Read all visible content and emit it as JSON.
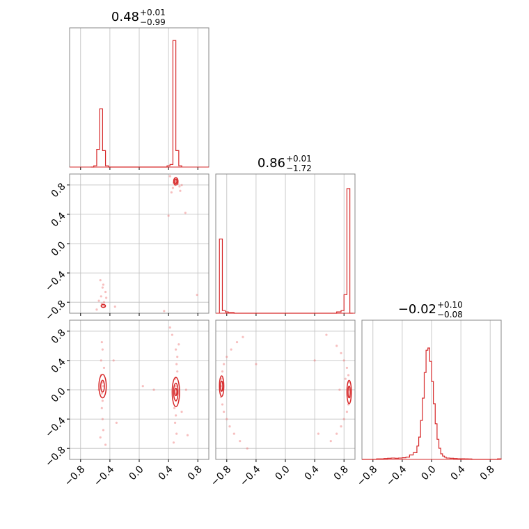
{
  "chart_data": {
    "type": "corner",
    "colors": {
      "accent": "#d62728",
      "points": "#f08080",
      "frame": "#888888",
      "grid": "#bdbdbd"
    },
    "parameter_titles": [
      {
        "value": "0.48",
        "plus": "+0.01",
        "minus": "−0.99"
      },
      {
        "value": "0.86",
        "plus": "+0.01",
        "minus": "−1.72"
      },
      {
        "value": "−0.02",
        "plus": "+0.10",
        "minus": "−0.08"
      }
    ],
    "x_tick_labels": [
      "−0.8",
      "−0.4",
      "0.0",
      "0.4",
      "0.8"
    ],
    "y_tick_labels": [
      "0.8",
      "0.4",
      "0.0",
      "−0.4",
      "−0.8"
    ],
    "tick_values": [
      -0.8,
      -0.4,
      0.0,
      0.4,
      0.8
    ],
    "axis_range": [
      -0.95,
      0.95
    ],
    "grid": true,
    "histograms": [
      {
        "param": 0,
        "edges": [
          -0.66,
          -0.62,
          -0.58,
          -0.54,
          -0.5,
          -0.46,
          -0.42,
          -0.38,
          0.38,
          0.42,
          0.46,
          0.5,
          0.54,
          0.58
        ],
        "counts": [
          0,
          0.01,
          0.14,
          0.46,
          0.13,
          0.01,
          0,
          0,
          0.01,
          0.02,
          1.0,
          0.13,
          0.01
        ],
        "ymax": 1.1
      },
      {
        "param": 1,
        "edges": [
          -0.9,
          -0.86,
          -0.82,
          -0.78,
          -0.7,
          0.7,
          0.76,
          0.8,
          0.84,
          0.88,
          0.92
        ],
        "counts": [
          0.56,
          0.02,
          0.01,
          0.005,
          0.0,
          0.01,
          0.02,
          0.14,
          0.94,
          0.0
        ],
        "ymax": 1.05
      },
      {
        "param": 2,
        "edges": [
          -0.95,
          -0.9,
          -0.85,
          -0.8,
          -0.75,
          -0.7,
          -0.65,
          -0.6,
          -0.55,
          -0.5,
          -0.45,
          -0.4,
          -0.35,
          -0.3,
          -0.25,
          -0.2,
          -0.175,
          -0.15,
          -0.125,
          -0.1,
          -0.075,
          -0.05,
          -0.025,
          0.0,
          0.025,
          0.05,
          0.075,
          0.1,
          0.125,
          0.15,
          0.175,
          0.2,
          0.25,
          0.3,
          0.35,
          0.4,
          0.45,
          0.5,
          0.55,
          0.6,
          0.65,
          0.7,
          0.75,
          0.8,
          0.85,
          0.9,
          0.95
        ],
        "counts": [
          0.0,
          0.0,
          0.0,
          0.0,
          0.005,
          0.005,
          0.008,
          0.01,
          0.012,
          0.01,
          0.012,
          0.015,
          0.02,
          0.04,
          0.06,
          0.12,
          0.2,
          0.35,
          0.55,
          0.78,
          0.98,
          1.0,
          0.88,
          0.7,
          0.5,
          0.32,
          0.18,
          0.1,
          0.05,
          0.03,
          0.02,
          0.012,
          0.01,
          0.008,
          0.006,
          0.006,
          0.005,
          0.004,
          0.0,
          0.0,
          0.0,
          0.0,
          0.0,
          0.0,
          0.0,
          0.005
        ],
        "ymax": 1.25
      }
    ],
    "scatter_panels": [
      {
        "x_param": 0,
        "y_param": 1,
        "points": [
          [
            0.48,
            0.87
          ],
          [
            0.5,
            0.85
          ],
          [
            0.52,
            0.84
          ],
          [
            0.47,
            0.83
          ],
          [
            0.51,
            0.88
          ],
          [
            0.53,
            0.82
          ],
          [
            0.49,
            0.8
          ],
          [
            0.55,
            0.78
          ],
          [
            0.46,
            0.76
          ],
          [
            0.58,
            0.8
          ],
          [
            0.44,
            0.7
          ],
          [
            0.56,
            0.72
          ],
          [
            0.63,
            0.42
          ],
          [
            0.79,
            -0.7
          ],
          [
            0.4,
            0.38
          ],
          [
            -0.49,
            -0.84
          ],
          [
            -0.47,
            -0.86
          ],
          [
            -0.51,
            -0.82
          ],
          [
            -0.48,
            -0.8
          ],
          [
            -0.52,
            -0.72
          ],
          [
            -0.5,
            -0.6
          ],
          [
            -0.53,
            -0.5
          ],
          [
            -0.45,
            -0.74
          ],
          [
            -0.55,
            -0.78
          ],
          [
            -0.46,
            -0.66
          ],
          [
            -0.49,
            -0.56
          ],
          [
            -0.33,
            -0.86
          ],
          [
            -0.58,
            -0.9
          ],
          [
            0.34,
            -0.92
          ],
          [
            0.42,
            0.92
          ]
        ],
        "contours": [
          {
            "cx": 0.5,
            "cy": 0.85,
            "rx": 0.03,
            "ry": 0.05
          },
          {
            "cx": 0.5,
            "cy": 0.85,
            "rx": 0.015,
            "ry": 0.03
          },
          {
            "cx": -0.49,
            "cy": -0.85,
            "rx": 0.03,
            "ry": 0.02
          }
        ]
      },
      {
        "x_param": 0,
        "y_param": 2,
        "points": [
          [
            -0.5,
            0.1
          ],
          [
            -0.49,
            0.05
          ],
          [
            -0.51,
            -0.05
          ],
          [
            -0.5,
            -0.15
          ],
          [
            -0.52,
            0.2
          ],
          [
            -0.48,
            0.3
          ],
          [
            -0.51,
            -0.25
          ],
          [
            -0.5,
            -0.4
          ],
          [
            -0.52,
            0.4
          ],
          [
            -0.49,
            -0.55
          ],
          [
            -0.5,
            0.55
          ],
          [
            -0.53,
            -0.65
          ],
          [
            -0.51,
            0.65
          ],
          [
            -0.46,
            -0.75
          ],
          [
            -0.35,
            0.4
          ],
          [
            -0.31,
            -0.45
          ],
          [
            0.5,
            0.05
          ],
          [
            0.51,
            -0.05
          ],
          [
            0.49,
            0.15
          ],
          [
            0.5,
            -0.15
          ],
          [
            0.52,
            0.25
          ],
          [
            0.48,
            -0.25
          ],
          [
            0.51,
            0.35
          ],
          [
            0.5,
            -0.35
          ],
          [
            0.52,
            0.45
          ],
          [
            0.49,
            -0.45
          ],
          [
            0.5,
            0.55
          ],
          [
            0.51,
            -0.6
          ],
          [
            0.45,
            0.75
          ],
          [
            0.54,
            0.62
          ],
          [
            0.47,
            -0.72
          ],
          [
            0.2,
            0.0
          ],
          [
            0.64,
            0.0
          ],
          [
            0.05,
            0.05
          ],
          [
            0.58,
            -0.3
          ],
          [
            0.42,
            0.85
          ],
          [
            0.66,
            -0.62
          ],
          [
            -0.55,
            0.0
          ]
        ],
        "contours": [
          {
            "cx": -0.5,
            "cy": 0.05,
            "rx": 0.05,
            "ry": 0.16
          },
          {
            "cx": -0.5,
            "cy": 0.05,
            "rx": 0.025,
            "ry": 0.08
          },
          {
            "cx": 0.5,
            "cy": -0.03,
            "rx": 0.05,
            "ry": 0.2
          },
          {
            "cx": 0.5,
            "cy": -0.03,
            "rx": 0.03,
            "ry": 0.12
          },
          {
            "cx": 0.5,
            "cy": -0.03,
            "rx": 0.015,
            "ry": 0.05
          }
        ]
      },
      {
        "x_param": 1,
        "y_param": 2,
        "points": [
          [
            -0.88,
            0.05
          ],
          [
            -0.87,
            0.15
          ],
          [
            -0.88,
            -0.1
          ],
          [
            -0.86,
            0.25
          ],
          [
            -0.86,
            -0.2
          ],
          [
            -0.84,
            -0.3
          ],
          [
            -0.8,
            -0.4
          ],
          [
            -0.76,
            -0.5
          ],
          [
            -0.7,
            -0.6
          ],
          [
            -0.62,
            -0.7
          ],
          [
            -0.52,
            -0.8
          ],
          [
            -0.84,
            0.35
          ],
          [
            -0.8,
            0.45
          ],
          [
            -0.74,
            0.55
          ],
          [
            -0.66,
            0.65
          ],
          [
            -0.58,
            0.72
          ],
          [
            0.88,
            0.0
          ],
          [
            0.87,
            0.1
          ],
          [
            0.88,
            -0.1
          ],
          [
            0.86,
            0.2
          ],
          [
            0.86,
            -0.2
          ],
          [
            0.84,
            0.3
          ],
          [
            0.8,
            0.4
          ],
          [
            0.76,
            0.5
          ],
          [
            0.7,
            0.6
          ],
          [
            0.84,
            -0.3
          ],
          [
            0.8,
            -0.4
          ],
          [
            0.76,
            -0.5
          ],
          [
            0.7,
            -0.6
          ],
          [
            0.62,
            -0.7
          ],
          [
            0.4,
            0.4
          ],
          [
            0.45,
            -0.6
          ],
          [
            -0.4,
            0.35
          ],
          [
            0.56,
            0.75
          ],
          [
            0.74,
            0.0
          ],
          [
            0.82,
            0.15
          ]
        ],
        "contours": [
          {
            "cx": -0.87,
            "cy": 0.05,
            "rx": 0.03,
            "ry": 0.14
          },
          {
            "cx": -0.87,
            "cy": 0.05,
            "rx": 0.015,
            "ry": 0.07
          },
          {
            "cx": 0.87,
            "cy": -0.03,
            "rx": 0.03,
            "ry": 0.16
          },
          {
            "cx": 0.87,
            "cy": -0.03,
            "rx": 0.015,
            "ry": 0.08
          }
        ]
      }
    ]
  }
}
